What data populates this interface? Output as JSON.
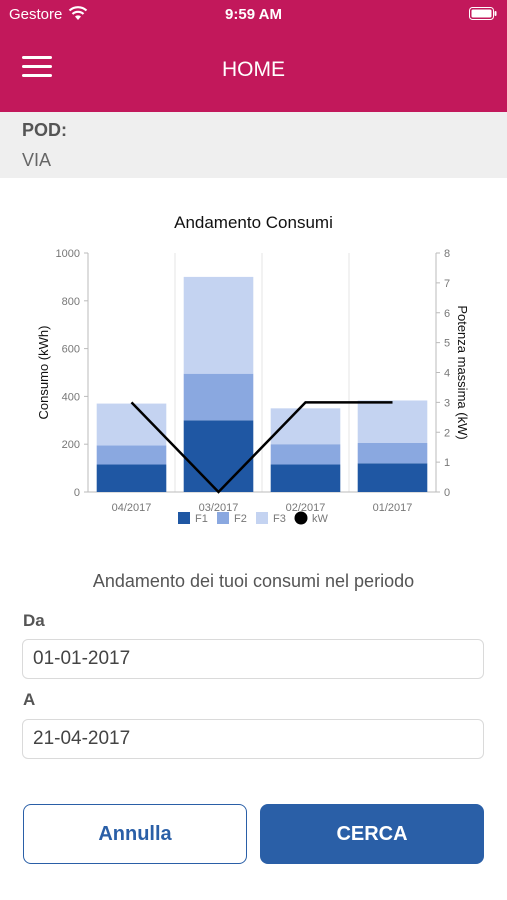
{
  "status_bar": {
    "carrier": "Gestore",
    "time": "9:59 AM"
  },
  "header": {
    "title": "HOME",
    "accent_color": "#c2185b"
  },
  "pod": {
    "pod_label": "POD:",
    "via_label": "VIA"
  },
  "chart_data": {
    "type": "bar",
    "title": "Andamento Consumi",
    "categories": [
      "04/2017",
      "03/2017",
      "02/2017",
      "01/2017"
    ],
    "series": [
      {
        "name": "F1",
        "values": [
          115,
          300,
          115,
          120
        ],
        "color": "#1f57a3"
      },
      {
        "name": "F2",
        "values": [
          80,
          195,
          85,
          85
        ],
        "color": "#8aa8e0"
      },
      {
        "name": "F3",
        "values": [
          175,
          405,
          150,
          178
        ],
        "color": "#c4d3f1"
      }
    ],
    "line": {
      "name": "kW",
      "values": [
        3,
        0,
        3,
        3
      ],
      "color": "#000000"
    },
    "ylabel": "Consumo (kWh)",
    "ylabel_right": "Potenza massima (kW)",
    "ylim": [
      0,
      1000
    ],
    "yticks": [
      "0",
      "200",
      "400",
      "600",
      "800",
      "1000"
    ],
    "ylim_right": [
      0,
      8
    ],
    "yticks_right": [
      "0",
      "1",
      "2",
      "3",
      "4",
      "5",
      "6",
      "7",
      "8"
    ],
    "legend_placement": "bottom"
  },
  "period_text": "Andamento dei tuoi consumi nel periodo",
  "form": {
    "from_label": "Da",
    "from_value": "01-01-2017",
    "to_label": "A",
    "to_value": "21-04-2017"
  },
  "buttons": {
    "cancel": "Annulla",
    "search": "CERCA",
    "primary_color": "#2a5fa7"
  }
}
